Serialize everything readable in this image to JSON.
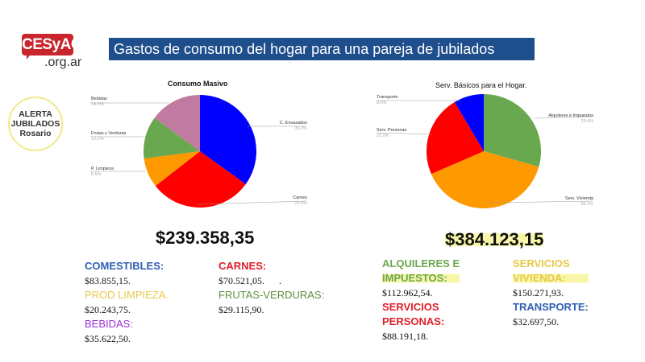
{
  "logo": {
    "name": "CESyAC",
    "domain": ".org.ar",
    "color": "#c9252c"
  },
  "badge": {
    "line1": "ALERTA",
    "line2": "JUBILADOS",
    "line3": "Rosario"
  },
  "header": {
    "title": "Gastos de consumo del hogar para una pareja de jubilados"
  },
  "chart_data": [
    {
      "type": "pie",
      "title": "Consumo Masivo",
      "slices": [
        {
          "label": "C. Envasados",
          "pct": "35.0%",
          "value": 35.0,
          "color": "#0000ff"
        },
        {
          "label": "Carnes",
          "pct": "29.5%",
          "value": 29.5,
          "color": "#ff0000"
        },
        {
          "label": "P. Limpieza",
          "pct": "8.5%",
          "value": 8.5,
          "color": "#ff9900"
        },
        {
          "label": "Frutas y Verduras",
          "pct": "12.2%",
          "value": 12.2,
          "color": "#6aa84f"
        },
        {
          "label": "Bebidas",
          "pct": "14.9%",
          "value": 14.9,
          "color": "#c27ba0"
        }
      ]
    },
    {
      "type": "pie",
      "title": "Serv. Básicos para el Hogar.",
      "slices": [
        {
          "label": "Alquileres e Impuestos",
          "pct": "29.4%",
          "value": 29.4,
          "color": "#6aa84f"
        },
        {
          "label": "Serv. Vivienda",
          "pct": "39.1%",
          "value": 39.1,
          "color": "#ff9900"
        },
        {
          "label": "Serv. Personas",
          "pct": "23.0%",
          "value": 23.0,
          "color": "#ff0000"
        },
        {
          "label": "Transporte",
          "pct": "8.5%",
          "value": 8.5,
          "color": "#0000ff"
        }
      ]
    }
  ],
  "left": {
    "total": "$239.358,35",
    "items": [
      {
        "label": "COMESTIBLES:",
        "value": "$83.855,15.",
        "color": "#2f5fb3"
      },
      {
        "label": "PROD LIMPIEZA.",
        "value": "$20.243,75.",
        "color": "#e8c94a"
      },
      {
        "label": "BEBIDAS:",
        "value": "$35.622,50.",
        "color": "#9b30d9"
      },
      {
        "label": "CARNES:",
        "value": "$70.521,05.      .",
        "color": "#e0202a"
      },
      {
        "label": "FRUTAS-VERDURAS:",
        "value": "$29.115,90.",
        "color": "#5f8f3e"
      }
    ]
  },
  "right": {
    "total": "$384.123,15",
    "items": [
      {
        "label1": "ALQUILERES E",
        "label2": "IMPUESTOS:",
        "value": "$112.962,54.",
        "color": "#6aa84f"
      },
      {
        "label1": "SERVICIOS",
        "label2": "PERSONAS:",
        "value": "$88.191,18.",
        "color": "#e0202a"
      },
      {
        "label1": "SERVICIOS",
        "label2": "VIVIENDA:",
        "value": "$150.271,93.",
        "color": "#e8c94a"
      },
      {
        "label1": "TRANSPORTE:",
        "label2": "",
        "value": "$32.697,50.",
        "color": "#2f5fb3"
      }
    ]
  }
}
